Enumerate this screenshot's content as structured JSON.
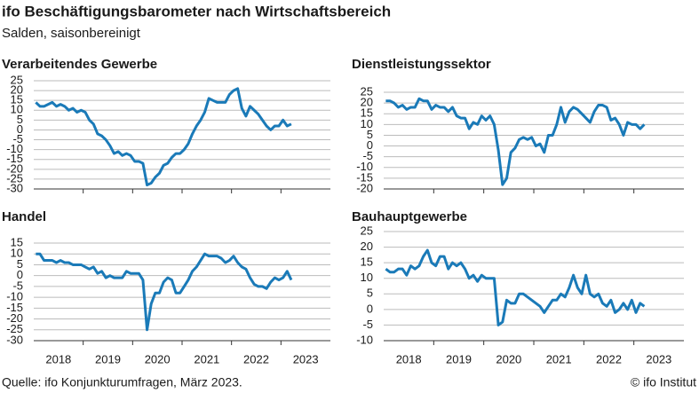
{
  "title": "ifo Beschäftigungsbarometer nach Wirtschaftsbereich",
  "subtitle": "Salden, saisonbereinigt",
  "chart_data": [
    {
      "type": "line",
      "title": "Verarbeitendes Gewerbe",
      "color": "#1a7ab8",
      "grid": true,
      "ylim": [
        -30,
        25
      ],
      "yticks": [
        25,
        20,
        15,
        10,
        5,
        0,
        -5,
        -10,
        -15,
        -20,
        -25,
        -30
      ],
      "values": [
        14,
        12,
        12,
        13,
        14,
        12,
        13,
        12,
        10,
        11,
        9,
        10,
        9,
        5,
        3,
        -2,
        -3,
        -5,
        -8,
        -12,
        -11,
        -13,
        -12,
        -13,
        -16,
        -16,
        -17,
        -28,
        -27,
        -24,
        -22,
        -18,
        -17,
        -14,
        -12,
        -12,
        -10,
        -7,
        -2,
        2,
        5,
        9,
        16,
        15,
        14,
        14,
        14,
        18,
        20,
        21,
        11,
        7,
        12,
        10,
        8,
        5,
        2,
        0,
        2,
        2,
        5,
        2,
        3,
        null,
        null,
        null,
        null,
        null,
        null,
        null,
        null,
        null
      ]
    },
    {
      "type": "line",
      "title": "Dienstleistungssektor",
      "color": "#1a7ab8",
      "grid": true,
      "ylim": [
        -20,
        25
      ],
      "yticks": [
        25,
        20,
        15,
        10,
        5,
        0,
        -5,
        -10,
        -15,
        -20
      ],
      "values": [
        21,
        21,
        20,
        18,
        19,
        17,
        18,
        18,
        22,
        21,
        21,
        17,
        19,
        18,
        18,
        16,
        18,
        14,
        13,
        13,
        8,
        11,
        10,
        14,
        12,
        14,
        10,
        -2,
        -18,
        -15,
        -3,
        -1,
        3,
        4,
        3,
        4,
        0,
        1,
        -3,
        5,
        5,
        10,
        18,
        11,
        16,
        18,
        17,
        15,
        13,
        11,
        16,
        19,
        19,
        18,
        12,
        13,
        10,
        5,
        11,
        10,
        10,
        8,
        10,
        null,
        null,
        null,
        null,
        null,
        null,
        null,
        null,
        null
      ]
    },
    {
      "type": "line",
      "title": "Handel",
      "color": "#1a7ab8",
      "grid": true,
      "ylim": [
        -30,
        15
      ],
      "yticks": [
        15,
        10,
        5,
        0,
        -5,
        -10,
        -15,
        -20,
        -25,
        -30
      ],
      "categories": [
        null,
        null,
        null,
        null,
        null,
        null,
        "2018",
        null,
        null,
        null,
        null,
        null,
        null,
        null,
        null,
        null,
        null,
        null,
        "2019",
        null,
        null,
        null,
        null,
        null,
        null,
        null,
        null,
        null,
        null,
        null,
        "2020",
        null,
        null,
        null,
        null,
        null,
        null,
        null,
        null,
        null,
        null,
        null,
        "2021",
        null,
        null,
        null,
        null,
        null,
        null,
        null,
        null,
        null,
        null,
        null,
        "2022",
        null,
        null,
        null,
        null,
        null,
        null,
        null,
        null,
        null,
        null,
        null,
        "2023",
        null,
        null,
        null,
        null,
        null
      ],
      "values": [
        10,
        10,
        7,
        7,
        7,
        6,
        7,
        6,
        6,
        5,
        5,
        5,
        4,
        3,
        4,
        1,
        2,
        -1,
        0,
        -1,
        -1,
        -1,
        2,
        1,
        1,
        1,
        -2,
        -25,
        -13,
        -8,
        -8,
        -3,
        -1,
        -2,
        -8,
        -8,
        -5,
        -2,
        2,
        4,
        7,
        10,
        9,
        9,
        9,
        8,
        6,
        7,
        9,
        6,
        4,
        3,
        -1,
        -4,
        -5,
        -5,
        -6,
        -3,
        -1,
        -2,
        -1,
        2,
        -2,
        null,
        null,
        null,
        null,
        null,
        null,
        null,
        null,
        null
      ]
    },
    {
      "type": "line",
      "title": "Bauhauptgewerbe",
      "color": "#1a7ab8",
      "grid": true,
      "ylim": [
        -10,
        25
      ],
      "yticks": [
        25,
        20,
        15,
        10,
        5,
        0,
        -5,
        -10
      ],
      "categories": [
        null,
        null,
        null,
        null,
        null,
        null,
        "2018",
        null,
        null,
        null,
        null,
        null,
        null,
        null,
        null,
        null,
        null,
        null,
        "2019",
        null,
        null,
        null,
        null,
        null,
        null,
        null,
        null,
        null,
        null,
        null,
        "2020",
        null,
        null,
        null,
        null,
        null,
        null,
        null,
        null,
        null,
        null,
        null,
        "2021",
        null,
        null,
        null,
        null,
        null,
        null,
        null,
        null,
        null,
        null,
        null,
        "2022",
        null,
        null,
        null,
        null,
        null,
        null,
        null,
        null,
        null,
        null,
        null,
        "2023",
        null,
        null,
        null,
        null,
        null
      ],
      "values": [
        13,
        12,
        12,
        13,
        13,
        11,
        14,
        13,
        14,
        17,
        19,
        15,
        14,
        17,
        17,
        13,
        15,
        14,
        15,
        13,
        10,
        11,
        9,
        11,
        10,
        10,
        10,
        -5,
        -4,
        3,
        2,
        2,
        5,
        5,
        4,
        3,
        2,
        1,
        -1,
        1,
        3,
        3,
        5,
        4,
        7,
        11,
        7,
        5,
        11,
        5,
        4,
        5,
        2,
        1,
        3,
        -1,
        0,
        2,
        0,
        3,
        -1,
        2,
        1,
        null,
        null,
        null,
        null,
        null,
        null,
        null,
        null,
        null
      ]
    }
  ],
  "source": "Quelle: ifo Konjunkturumfragen, März 2023.",
  "copyright": "© ifo Institut"
}
